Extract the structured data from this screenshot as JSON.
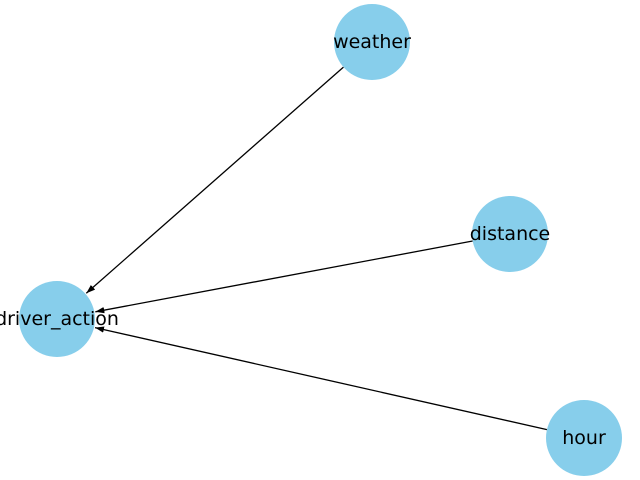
{
  "graph": {
    "directed": true,
    "style": {
      "node_color": "#87ceeb",
      "edge_color": "#000000",
      "label_color": "#000000",
      "background": "#ffffff"
    },
    "nodes": [
      {
        "id": "weather",
        "label": "weather"
      },
      {
        "id": "distance",
        "label": "distance"
      },
      {
        "id": "driver_action",
        "label": "driver_action"
      },
      {
        "id": "hour",
        "label": "hour"
      }
    ],
    "edges": [
      {
        "from": "weather",
        "to": "driver_action"
      },
      {
        "from": "distance",
        "to": "driver_action"
      },
      {
        "from": "hour",
        "to": "driver_action"
      }
    ]
  }
}
